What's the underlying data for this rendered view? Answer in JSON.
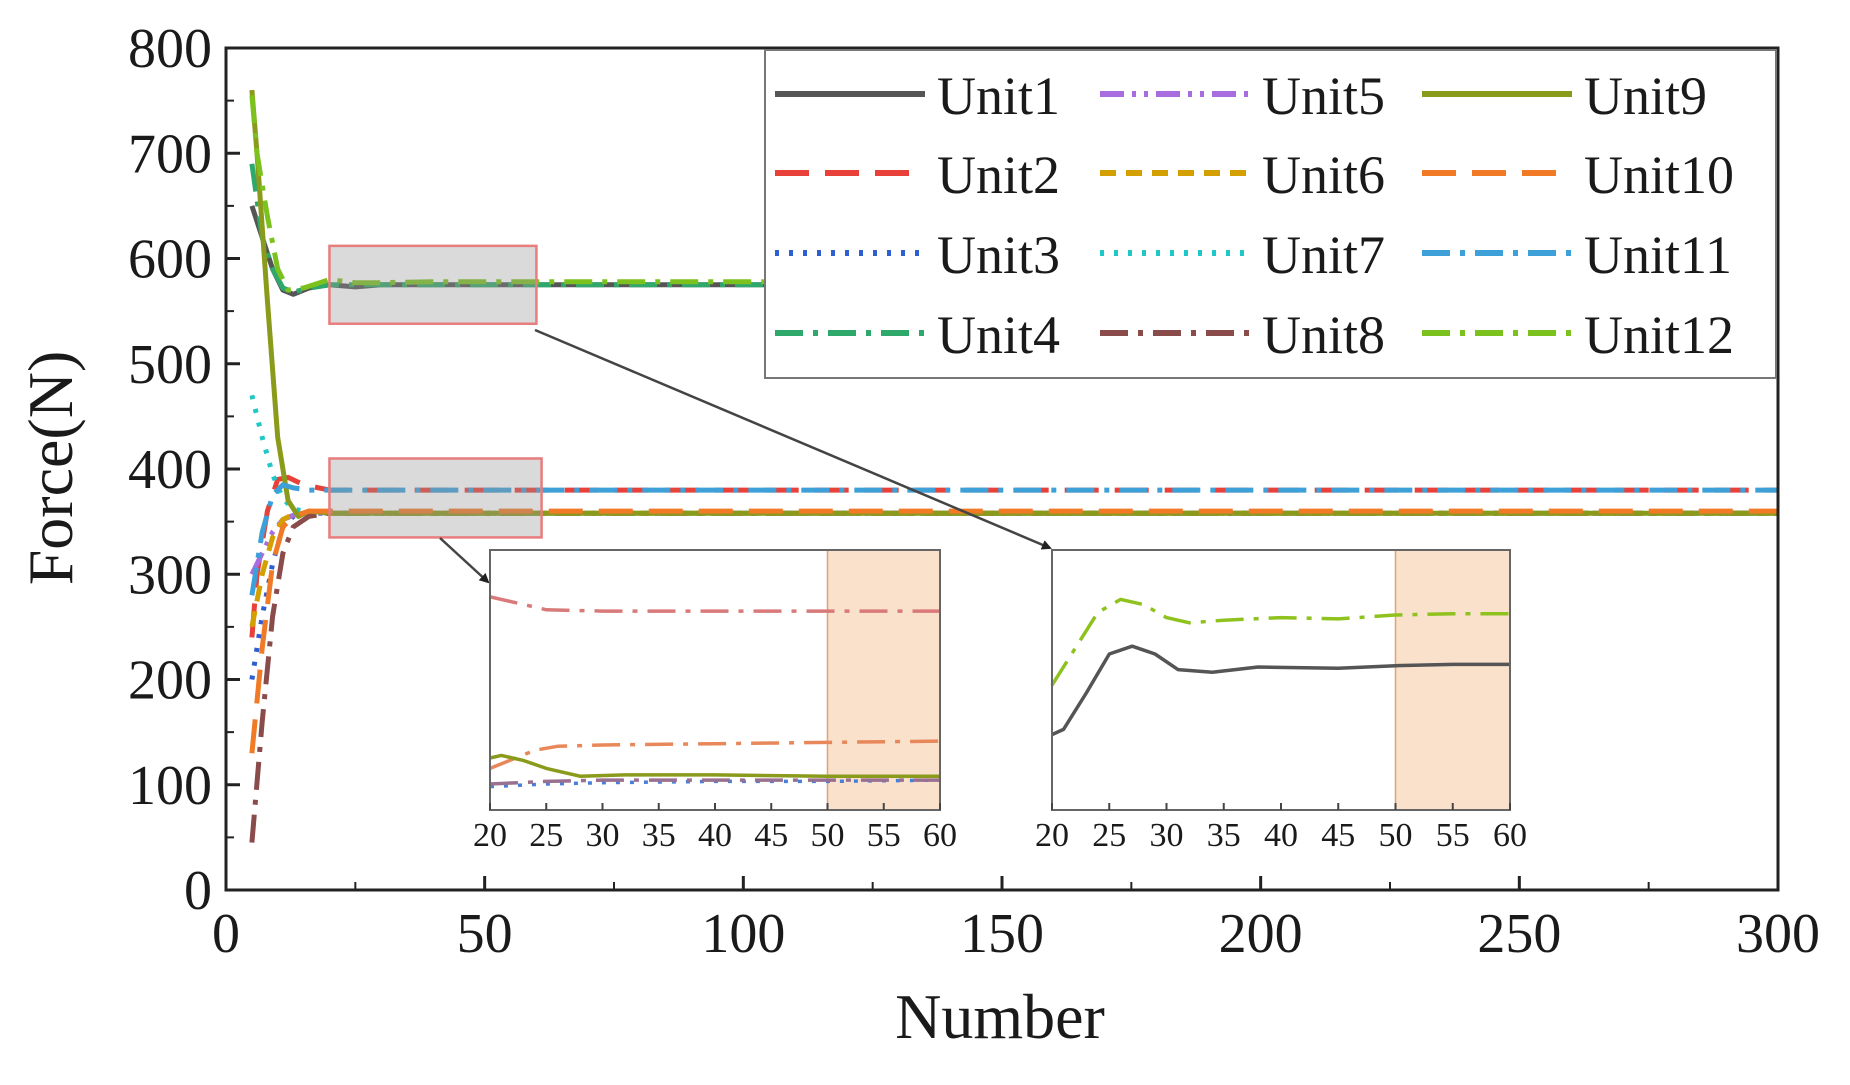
{
  "chart_data": {
    "type": "line",
    "xlabel": "Number",
    "ylabel": "Force(N)",
    "xlim": [
      0,
      300
    ],
    "ylim": [
      0,
      800
    ],
    "xticks": [
      0,
      50,
      100,
      150,
      200,
      250,
      300
    ],
    "yticks": [
      0,
      100,
      200,
      300,
      400,
      500,
      600,
      700,
      800
    ],
    "grid": false,
    "legend": {
      "placement": "top-right",
      "columns": 3
    },
    "series": [
      {
        "name": "Unit1",
        "color": "#555555",
        "dash": "solid",
        "x": [
          5,
          7,
          9,
          11,
          13,
          16,
          20,
          25,
          30,
          40,
          60,
          100,
          150,
          200,
          250,
          300
        ],
        "y": [
          650,
          620,
          590,
          570,
          566,
          572,
          575,
          573,
          575,
          575,
          575,
          575,
          575,
          575,
          575,
          575
        ]
      },
      {
        "name": "Unit2",
        "color": "#e8413a",
        "dash": "longdash",
        "x": [
          5,
          6,
          8,
          10,
          12,
          15,
          20,
          30,
          60,
          100,
          150,
          200,
          250,
          300
        ],
        "y": [
          240,
          300,
          360,
          390,
          392,
          385,
          380,
          380,
          380,
          380,
          380,
          380,
          380,
          380
        ]
      },
      {
        "name": "Unit3",
        "color": "#2e5fd1",
        "dash": "dot",
        "x": [
          5,
          7,
          9,
          11,
          13,
          16,
          20,
          30,
          60,
          100,
          150,
          200,
          250,
          300
        ],
        "y": [
          200,
          260,
          310,
          345,
          355,
          358,
          358,
          358,
          358,
          358,
          358,
          358,
          358,
          358
        ]
      },
      {
        "name": "Unit4",
        "color": "#2fa86b",
        "dash": "dashdot",
        "x": [
          5,
          7,
          9,
          11,
          13,
          16,
          20,
          30,
          60,
          100,
          150,
          200,
          250,
          300
        ],
        "y": [
          690,
          620,
          590,
          572,
          568,
          572,
          575,
          575,
          575,
          575,
          575,
          575,
          575,
          575
        ]
      },
      {
        "name": "Unit5",
        "color": "#a86ee0",
        "dash": "dashdotdot",
        "x": [
          5,
          7,
          9,
          11,
          13,
          16,
          20,
          30,
          60,
          100,
          150,
          200,
          250,
          300
        ],
        "y": [
          300,
          320,
          340,
          352,
          356,
          358,
          358,
          358,
          358,
          358,
          358,
          358,
          358,
          358
        ]
      },
      {
        "name": "Unit6",
        "color": "#d4a000",
        "dash": "shortdash",
        "x": [
          5,
          7,
          9,
          11,
          13,
          16,
          20,
          30,
          60,
          100,
          150,
          200,
          250,
          300
        ],
        "y": [
          250,
          300,
          335,
          352,
          357,
          358,
          358,
          358,
          358,
          358,
          358,
          358,
          358,
          358
        ]
      },
      {
        "name": "Unit7",
        "color": "#1fc7c7",
        "dash": "dot",
        "x": [
          5,
          7,
          9,
          11,
          13,
          16,
          20,
          30,
          60,
          100,
          150,
          200,
          250,
          300
        ],
        "y": [
          470,
          430,
          395,
          372,
          362,
          359,
          358,
          358,
          358,
          358,
          358,
          358,
          358,
          358
        ]
      },
      {
        "name": "Unit8",
        "color": "#8a4b4b",
        "dash": "dashdot",
        "x": [
          5,
          7,
          9,
          11,
          13,
          16,
          20,
          30,
          60,
          100,
          150,
          200,
          250,
          300
        ],
        "y": [
          45,
          160,
          260,
          320,
          345,
          355,
          358,
          358,
          358,
          358,
          358,
          358,
          358,
          358
        ]
      },
      {
        "name": "Unit9",
        "color": "#8a9a1a",
        "dash": "solid",
        "x": [
          5,
          6,
          8,
          10,
          12,
          14,
          16,
          20,
          30,
          60,
          100,
          150,
          200,
          250,
          300
        ],
        "y": [
          760,
          700,
          560,
          430,
          370,
          355,
          360,
          358,
          358,
          358,
          358,
          358,
          358,
          358,
          358
        ]
      },
      {
        "name": "Unit10",
        "color": "#f07a26",
        "dash": "longdash",
        "x": [
          5,
          7,
          9,
          11,
          13,
          16,
          20,
          30,
          60,
          100,
          150,
          200,
          250,
          300
        ],
        "y": [
          130,
          230,
          310,
          345,
          355,
          360,
          360,
          360,
          360,
          360,
          360,
          360,
          360,
          360
        ]
      },
      {
        "name": "Unit11",
        "color": "#3ea0d8",
        "dash": "dashdot",
        "x": [
          5,
          7,
          9,
          11,
          13,
          16,
          20,
          30,
          60,
          100,
          150,
          200,
          250,
          300
        ],
        "y": [
          280,
          340,
          375,
          385,
          382,
          380,
          380,
          380,
          380,
          380,
          380,
          380,
          380,
          380
        ]
      },
      {
        "name": "Unit12",
        "color": "#7cc21f",
        "dash": "dashdot",
        "x": [
          5,
          6,
          8,
          10,
          12,
          15,
          20,
          25,
          30,
          40,
          60,
          100,
          150,
          200,
          250,
          300
        ],
        "y": [
          755,
          700,
          640,
          590,
          570,
          572,
          580,
          577,
          577,
          578,
          578,
          578,
          578,
          578,
          578,
          578
        ]
      }
    ],
    "insets": [
      {
        "xlim": [
          20,
          60
        ],
        "xticks": [
          20,
          25,
          30,
          35,
          40,
          45,
          50,
          55,
          60
        ],
        "highlight_x": [
          50,
          60
        ],
        "series": [
          {
            "color": "#d97a7a",
            "dash": "dashdot",
            "x": [
              20,
              25,
              30,
              40,
              50,
              60
            ],
            "y": [
              0.82,
              0.77,
              0.765,
              0.765,
              0.765,
              0.765
            ]
          },
          {
            "color": "#e8885a",
            "dash": "dashdot",
            "x": [
              20,
              24,
              26,
              30,
              40,
              50,
              60
            ],
            "y": [
              0.16,
              0.23,
              0.245,
              0.25,
              0.255,
              0.26,
              0.265
            ]
          },
          {
            "color": "#8a9a1a",
            "dash": "solid",
            "x": [
              20,
              21,
              23,
              25,
              28,
              32,
              40,
              50,
              60
            ],
            "y": [
              0.2,
              0.21,
              0.19,
              0.16,
              0.13,
              0.135,
              0.135,
              0.13,
              0.13
            ]
          },
          {
            "color": "#4a7fd8",
            "dash": "dot",
            "x": [
              20,
              25,
              30,
              40,
              50,
              60
            ],
            "y": [
              0.09,
              0.1,
              0.105,
              0.11,
              0.11,
              0.115
            ]
          },
          {
            "color": "#9a7090",
            "dash": "dashdot",
            "x": [
              20,
              25,
              30,
              40,
              50,
              60
            ],
            "y": [
              0.1,
              0.11,
              0.115,
              0.115,
              0.115,
              0.115
            ]
          }
        ]
      },
      {
        "xlim": [
          20,
          60
        ],
        "xticks": [
          20,
          25,
          30,
          35,
          40,
          45,
          50,
          55,
          60
        ],
        "highlight_x": [
          50,
          60
        ],
        "series": [
          {
            "color": "#8fc21f",
            "dash": "dashdot",
            "x": [
              20,
              22,
              24,
              26,
              28,
              30,
              32,
              35,
              40,
              45,
              50,
              55,
              60
            ],
            "y": [
              0.48,
              0.62,
              0.76,
              0.81,
              0.79,
              0.74,
              0.72,
              0.73,
              0.74,
              0.735,
              0.75,
              0.755,
              0.755
            ]
          },
          {
            "color": "#555555",
            "dash": "solid",
            "x": [
              20,
              21,
              23,
              25,
              27,
              29,
              31,
              34,
              38,
              45,
              50,
              55,
              60
            ],
            "y": [
              0.29,
              0.31,
              0.45,
              0.6,
              0.63,
              0.6,
              0.54,
              0.53,
              0.55,
              0.545,
              0.555,
              0.56,
              0.56
            ]
          }
        ]
      }
    ]
  }
}
